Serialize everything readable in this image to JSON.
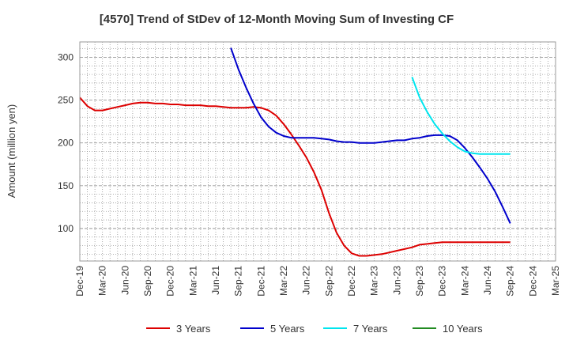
{
  "chart_data": {
    "type": "line",
    "title": "[4570]  Trend of StDev of 12-Month Moving Sum of Investing CF",
    "xlabel": "",
    "ylabel": "Amount (million yen)",
    "ylim": [
      62,
      318
    ],
    "yticks": [
      100,
      150,
      200,
      250,
      300
    ],
    "x_ticks": [
      "Dec-19",
      "Mar-20",
      "Jun-20",
      "Sep-20",
      "Dec-20",
      "Mar-21",
      "Jun-21",
      "Sep-21",
      "Dec-21",
      "Mar-22",
      "Jun-22",
      "Sep-22",
      "Dec-22",
      "Mar-23",
      "Jun-23",
      "Sep-23",
      "Dec-23",
      "Mar-24",
      "Jun-24",
      "Sep-24",
      "Dec-24",
      "Mar-25"
    ],
    "grid": true,
    "legend_position": "bottom",
    "series": [
      {
        "name": "3 Years",
        "color": "#dd0000",
        "points": [
          [
            "2019-12",
            253
          ],
          [
            "2020-01",
            243
          ],
          [
            "2020-02",
            238
          ],
          [
            "2020-03",
            238
          ],
          [
            "2020-04",
            240
          ],
          [
            "2020-05",
            242
          ],
          [
            "2020-06",
            244
          ],
          [
            "2020-07",
            246
          ],
          [
            "2020-08",
            247
          ],
          [
            "2020-09",
            247
          ],
          [
            "2020-10",
            246
          ],
          [
            "2020-11",
            246
          ],
          [
            "2020-12",
            245
          ],
          [
            "2021-01",
            245
          ],
          [
            "2021-02",
            244
          ],
          [
            "2021-03",
            244
          ],
          [
            "2021-04",
            244
          ],
          [
            "2021-05",
            243
          ],
          [
            "2021-06",
            243
          ],
          [
            "2021-07",
            242
          ],
          [
            "2021-08",
            241
          ],
          [
            "2021-09",
            241
          ],
          [
            "2021-10",
            241
          ],
          [
            "2021-11",
            242
          ],
          [
            "2021-12",
            241
          ],
          [
            "2022-01",
            238
          ],
          [
            "2022-02",
            232
          ],
          [
            "2022-03",
            222
          ],
          [
            "2022-04",
            210
          ],
          [
            "2022-05",
            197
          ],
          [
            "2022-06",
            183
          ],
          [
            "2022-07",
            166
          ],
          [
            "2022-08",
            145
          ],
          [
            "2022-09",
            118
          ],
          [
            "2022-10",
            95
          ],
          [
            "2022-11",
            80
          ],
          [
            "2022-12",
            71
          ],
          [
            "2023-01",
            68
          ],
          [
            "2023-02",
            68
          ],
          [
            "2023-03",
            69
          ],
          [
            "2023-04",
            70
          ],
          [
            "2023-05",
            72
          ],
          [
            "2023-06",
            74
          ],
          [
            "2023-07",
            76
          ],
          [
            "2023-08",
            78
          ],
          [
            "2023-09",
            81
          ],
          [
            "2023-10",
            82
          ],
          [
            "2023-11",
            83
          ],
          [
            "2023-12",
            84
          ],
          [
            "2024-01",
            84
          ],
          [
            "2024-02",
            84
          ],
          [
            "2024-03",
            84
          ],
          [
            "2024-04",
            84
          ],
          [
            "2024-05",
            84
          ],
          [
            "2024-06",
            84
          ],
          [
            "2024-07",
            84
          ],
          [
            "2024-08",
            84
          ],
          [
            "2024-09",
            84
          ]
        ]
      },
      {
        "name": "5 Years",
        "color": "#0000cc",
        "points": [
          [
            "2021-08",
            311
          ],
          [
            "2021-09",
            286
          ],
          [
            "2021-10",
            265
          ],
          [
            "2021-11",
            246
          ],
          [
            "2021-12",
            230
          ],
          [
            "2022-01",
            219
          ],
          [
            "2022-02",
            212
          ],
          [
            "2022-03",
            208
          ],
          [
            "2022-04",
            206
          ],
          [
            "2022-05",
            206
          ],
          [
            "2022-06",
            206
          ],
          [
            "2022-07",
            206
          ],
          [
            "2022-08",
            205
          ],
          [
            "2022-09",
            204
          ],
          [
            "2022-10",
            202
          ],
          [
            "2022-11",
            201
          ],
          [
            "2022-12",
            201
          ],
          [
            "2023-01",
            200
          ],
          [
            "2023-02",
            200
          ],
          [
            "2023-03",
            200
          ],
          [
            "2023-04",
            201
          ],
          [
            "2023-05",
            202
          ],
          [
            "2023-06",
            203
          ],
          [
            "2023-07",
            203
          ],
          [
            "2023-08",
            205
          ],
          [
            "2023-09",
            206
          ],
          [
            "2023-10",
            208
          ],
          [
            "2023-11",
            209
          ],
          [
            "2023-12",
            209
          ],
          [
            "2024-01",
            208
          ],
          [
            "2024-02",
            203
          ],
          [
            "2024-03",
            194
          ],
          [
            "2024-04",
            183
          ],
          [
            "2024-05",
            171
          ],
          [
            "2024-06",
            158
          ],
          [
            "2024-07",
            143
          ],
          [
            "2024-08",
            125
          ],
          [
            "2024-09",
            106
          ]
        ]
      },
      {
        "name": "7 Years",
        "color": "#00e5ee",
        "points": [
          [
            "2023-08",
            277
          ],
          [
            "2023-09",
            253
          ],
          [
            "2023-10",
            236
          ],
          [
            "2023-11",
            222
          ],
          [
            "2023-12",
            211
          ],
          [
            "2024-01",
            202
          ],
          [
            "2024-02",
            195
          ],
          [
            "2024-03",
            190
          ],
          [
            "2024-04",
            188
          ],
          [
            "2024-05",
            187
          ],
          [
            "2024-06",
            187
          ],
          [
            "2024-07",
            187
          ],
          [
            "2024-08",
            187
          ],
          [
            "2024-09",
            187
          ]
        ]
      },
      {
        "name": "10 Years",
        "color": "#228b22",
        "points": []
      }
    ]
  }
}
